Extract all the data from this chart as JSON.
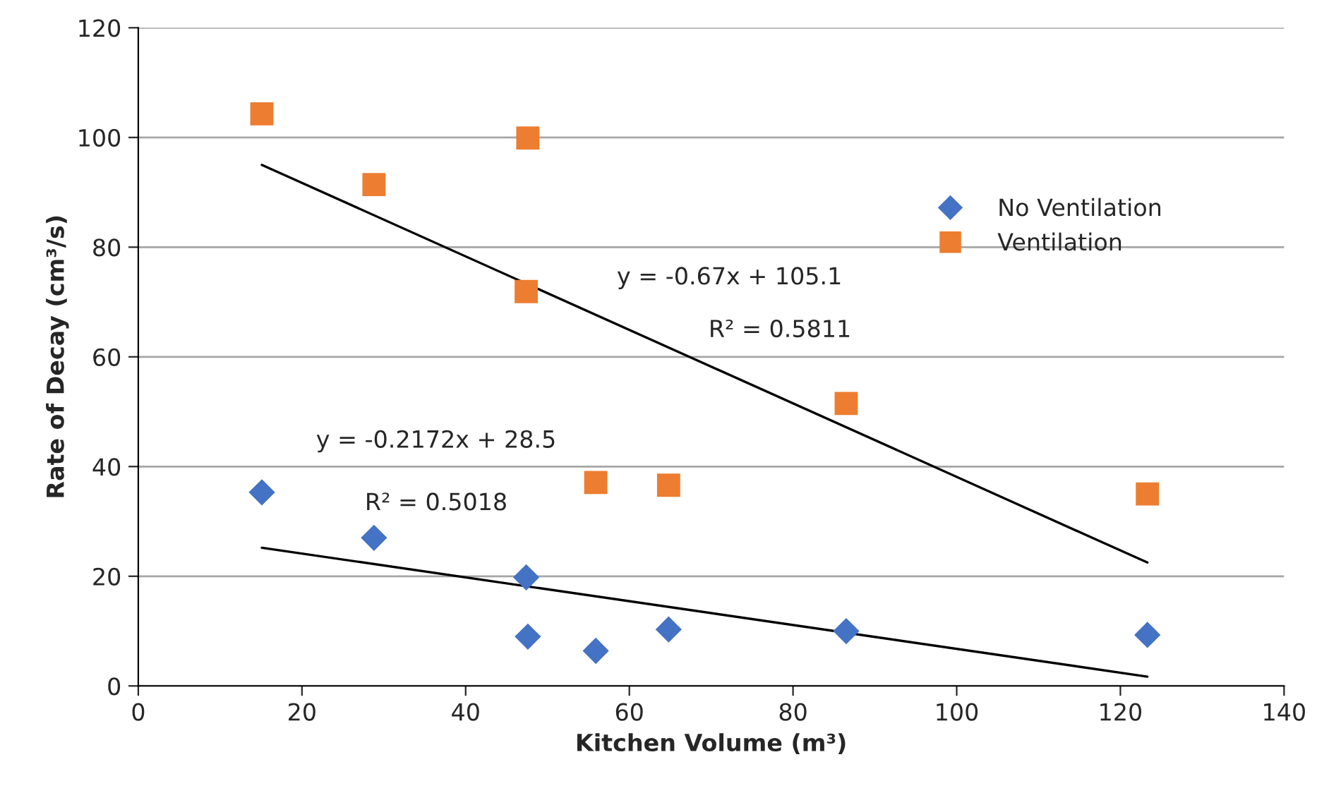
{
  "chart_data": {
    "type": "scatter",
    "xlabel": "Kitchen Volume (m³)",
    "ylabel": "Rate of Decay (cm³/s)",
    "xlim": [
      0,
      140
    ],
    "xticks": [
      0,
      20,
      40,
      60,
      80,
      100,
      120,
      140
    ],
    "ylim": [
      0,
      120
    ],
    "yticks": [
      0,
      20,
      40,
      60,
      80,
      100,
      120
    ],
    "grid": "y",
    "legend": "top right",
    "series": [
      {
        "name": "No Ventilation",
        "marker": "diamond",
        "color": "#4472c4",
        "x": [
          15.1,
          28.8,
          47.4,
          47.6,
          55.9,
          64.8,
          86.5,
          123.3
        ],
        "values": [
          35.3,
          27.0,
          19.8,
          9.0,
          6.4,
          10.3,
          10.0,
          9.3
        ]
      },
      {
        "name": "Ventilation",
        "marker": "square",
        "color": "#ed7d31",
        "x": [
          15.1,
          28.8,
          47.6,
          47.4,
          55.9,
          64.8,
          86.5,
          123.3
        ],
        "values": [
          104.3,
          91.4,
          99.9,
          71.9,
          37.1,
          36.6,
          51.5,
          35.0
        ]
      },
      {
        "type": "line",
        "marker": "none",
        "line_style": "solid",
        "color": "#000000",
        "x": [
          15.1,
          123.3
        ],
        "values": [
          95.0,
          22.5
        ]
      },
      {
        "type": "line",
        "marker": "none",
        "line_style": "solid",
        "color": "#000000",
        "x": [
          15.1,
          123.3
        ],
        "values": [
          25.2,
          1.7
        ]
      }
    ],
    "annotations": [
      "y = -0.67x + 105.1",
      "R² = 0.5811",
      "y = -0.2172x + 28.5",
      "R² = 0.5018"
    ]
  }
}
